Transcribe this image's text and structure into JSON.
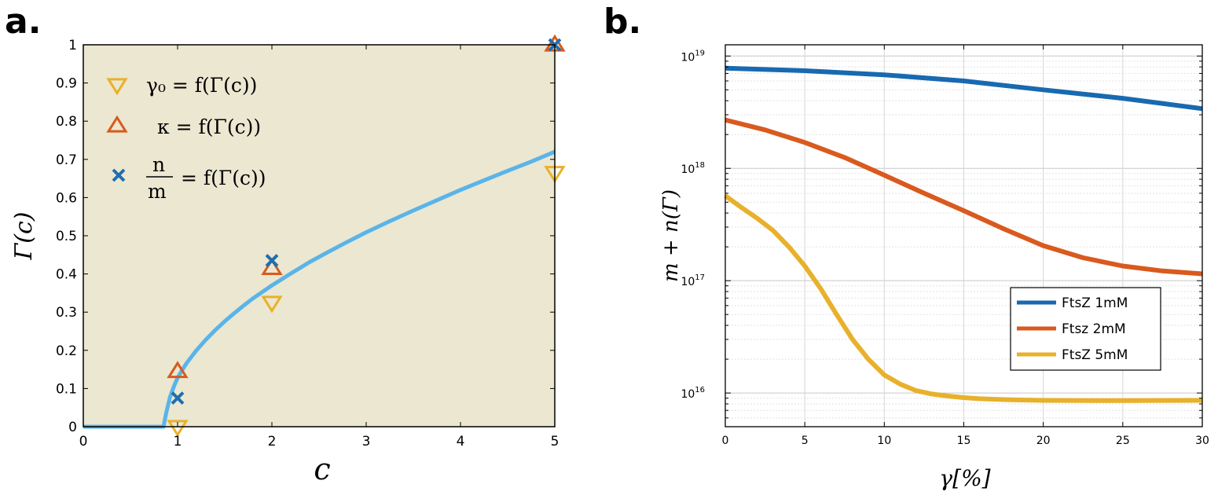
{
  "panels": {
    "a": {
      "label": "a."
    },
    "b": {
      "label": "b."
    }
  },
  "chart_data": [
    {
      "type": "line",
      "panel": "a",
      "xlabel": "c",
      "ylabel": "Γ(c)",
      "xlim": [
        0,
        5
      ],
      "ylim": [
        0,
        1
      ],
      "x_ticks": [
        0,
        1,
        2,
        3,
        4,
        5
      ],
      "x_tick_labels": [
        "0",
        "1",
        "2",
        "3",
        "4",
        "5"
      ],
      "y_ticks": [
        0,
        0.1,
        0.2,
        0.3,
        0.4,
        0.5,
        0.6,
        0.7,
        0.8,
        0.9,
        1
      ],
      "y_tick_labels": [
        "0",
        "0.1",
        "0.2",
        "0.3",
        "0.4",
        "0.5",
        "0.6",
        "0.7",
        "0.8",
        "0.9",
        "1"
      ],
      "background_color": "#ebe7d1",
      "grid": false,
      "legend_position": "top-left",
      "series": [
        {
          "kind": "line",
          "color": "#5ab4e8",
          "x": [
            0,
            0.85,
            0.88,
            0.92,
            0.96,
            1.0,
            1.05,
            1.1,
            1.2,
            1.3,
            1.4,
            1.5,
            1.6,
            1.7,
            1.8,
            2.0,
            2.2,
            2.4,
            2.6,
            2.8,
            3.0,
            3.25,
            3.5,
            3.75,
            4.0,
            4.25,
            4.5,
            4.75,
            5.0
          ],
          "y": [
            0,
            0,
            0.037,
            0.078,
            0.105,
            0.128,
            0.149,
            0.168,
            0.2,
            0.228,
            0.253,
            0.276,
            0.297,
            0.317,
            0.336,
            0.37,
            0.401,
            0.431,
            0.458,
            0.484,
            0.509,
            0.538,
            0.566,
            0.593,
            0.62,
            0.645,
            0.67,
            0.694,
            0.72
          ]
        },
        {
          "kind": "markers",
          "marker": "triangle-down",
          "color": "#e8b12c",
          "legend": "γ₀ = f(Γ(c))",
          "x": [
            1,
            2,
            5
          ],
          "y": [
            0,
            0.325,
            0.665
          ]
        },
        {
          "kind": "markers",
          "marker": "triangle-up",
          "color": "#d95a1e",
          "legend": "κ = f(Γ(c))",
          "x": [
            1,
            2,
            5
          ],
          "y": [
            0.145,
            0.415,
            1.0
          ]
        },
        {
          "kind": "markers",
          "marker": "x",
          "color": "#1f6faf",
          "legend_num": "n",
          "legend_den": "m",
          "legend_rest": "= f(Γ(c))",
          "x": [
            1,
            2,
            5
          ],
          "y": [
            0.075,
            0.435,
            1.0
          ]
        }
      ]
    },
    {
      "type": "line",
      "panel": "b",
      "xlabel": "γ[%]",
      "ylabel": "m + n(Γ)",
      "xlim": [
        0,
        30
      ],
      "ylim_log10": [
        15.7,
        19.1
      ],
      "y_scale": "log",
      "x_ticks": [
        0,
        5,
        10,
        15,
        20,
        25,
        30
      ],
      "x_tick_labels": [
        "0",
        "5",
        "10",
        "15",
        "20",
        "25",
        "30"
      ],
      "y_ticks": [
        {
          "exp": 16,
          "base": "10",
          "power": "16"
        },
        {
          "exp": 17,
          "base": "10",
          "power": "17"
        },
        {
          "exp": 18,
          "base": "10",
          "power": "18"
        },
        {
          "exp": 19,
          "base": "10",
          "power": "19"
        }
      ],
      "grid": true,
      "legend_position": "lower-right",
      "series": [
        {
          "name": "FtsZ 1mM",
          "color": "#1869b0",
          "x": [
            0,
            5,
            10,
            15,
            20,
            25,
            30
          ],
          "y": [
            7.8e+18,
            7.4e+18,
            6.8e+18,
            6e+18,
            5e+18,
            4.2e+18,
            3.4e+18
          ]
        },
        {
          "name": "Ftsz 2mM",
          "color": "#d95a1e",
          "x": [
            0,
            2.5,
            5,
            7.5,
            10,
            12.5,
            15,
            17.5,
            20,
            22.5,
            25,
            27.5,
            30
          ],
          "y": [
            2.7e+18,
            2.2e+18,
            1.7e+18,
            1.25e+18,
            8.7e+17,
            6e+17,
            4.2e+17,
            2.9e+17,
            2.05e+17,
            1.6e+17,
            1.35e+17,
            1.22e+17,
            1.15e+17
          ]
        },
        {
          "name": "FtsZ 5mM",
          "color": "#e8b12c",
          "x": [
            0,
            1,
            2,
            3,
            4,
            5,
            6,
            7,
            8,
            9,
            10,
            11,
            12,
            13,
            14,
            15,
            16,
            18,
            20,
            25,
            30
          ],
          "y": [
            5.7e+17,
            4.5e+17,
            3.6e+17,
            2.8e+17,
            2e+17,
            1.35e+17,
            8.5e+16,
            5e+16,
            3e+16,
            2e+16,
            1.45e+16,
            1.2e+16,
            1.05e+16,
            9800000000000000.0,
            9400000000000000.0,
            9100000000000000.0,
            8900000000000000.0,
            8700000000000000.0,
            8600000000000000.0,
            8550000000000000.0,
            8600000000000000.0
          ]
        }
      ]
    }
  ]
}
